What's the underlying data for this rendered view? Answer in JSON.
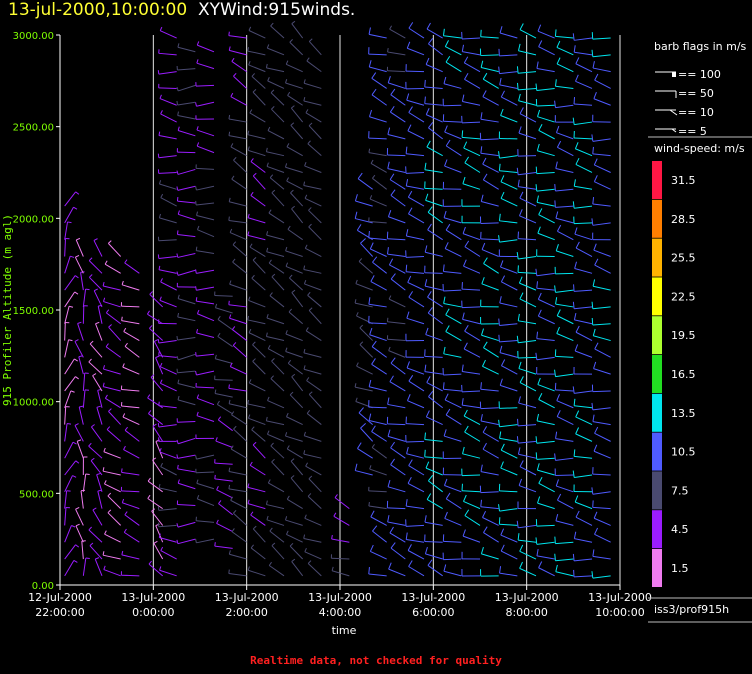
{
  "header": {
    "date_text": "13-jul-2000,10:00:00",
    "title_text": "XYWind:915winds."
  },
  "footer": {
    "note": "Realtime data, not checked for quality"
  },
  "legend": {
    "barb_title": "barb flags in m/s",
    "barbs": [
      {
        "label": "== 100",
        "kind": "flag"
      },
      {
        "label": "== 50",
        "kind": "full"
      },
      {
        "label": "== 10",
        "kind": "line"
      },
      {
        "label": "== 5",
        "kind": "half"
      }
    ],
    "speed_title": "wind-speed: m/s",
    "speed_colors": [
      {
        "label": "31.5",
        "color": "#ff1744"
      },
      {
        "label": "28.5",
        "color": "#ff7f00"
      },
      {
        "label": "25.5",
        "color": "#ffb300"
      },
      {
        "label": "22.5",
        "color": "#ffff00"
      },
      {
        "label": "19.5",
        "color": "#adff2f"
      },
      {
        "label": "16.5",
        "color": "#22dd22"
      },
      {
        "label": "13.5",
        "color": "#00e5ee"
      },
      {
        "label": "10.5",
        "color": "#4f5bff"
      },
      {
        "label": "7.5",
        "color": "#4a4a70"
      },
      {
        "label": "4.5",
        "color": "#9b1dff"
      },
      {
        "label": "1.5",
        "color": "#f07cf0"
      }
    ],
    "station": "iss3/prof915h"
  },
  "chart_data": {
    "type": "scatter",
    "xlabel": "time",
    "ylabel": "915 Profiler Altitude (m agl)",
    "ylim": [
      0,
      3000
    ],
    "yticks": [
      "0.00",
      "500.00",
      "1000.00",
      "1500.00",
      "2000.00",
      "2500.00",
      "3000.00"
    ],
    "xticks": [
      {
        "date": "12-Jul-2000",
        "time": "22:00:00"
      },
      {
        "date": "13-Jul-2000",
        "time": "0:00:00"
      },
      {
        "date": "13-Jul-2000",
        "time": "2:00:00"
      },
      {
        "date": "13-Jul-2000",
        "time": "4:00:00"
      },
      {
        "date": "13-Jul-2000",
        "time": "6:00:00"
      },
      {
        "date": "13-Jul-2000",
        "time": "8:00:00"
      },
      {
        "date": "13-Jul-2000",
        "time": "10:00:00"
      }
    ],
    "xlim_hours": [
      -2,
      10
    ],
    "grid": "vertical",
    "series": [
      {
        "hour": -1.9,
        "alt_from": 50,
        "alt_to": 2100,
        "speed": 3.0,
        "dir": 20
      },
      {
        "hour": -1.5,
        "alt_from": 50,
        "alt_to": 1800,
        "speed": 3.5,
        "dir": 350
      },
      {
        "hour": -1.1,
        "alt_from": 50,
        "alt_to": 1800,
        "speed": 4.0,
        "dir": 330
      },
      {
        "hour": -0.7,
        "alt_from": 50,
        "alt_to": 1800,
        "speed": 3.5,
        "dir": 300
      },
      {
        "hour": -0.3,
        "alt_from": 50,
        "alt_to": 1750,
        "speed": 3.0,
        "dir": 290
      },
      {
        "hour": 0.2,
        "alt_from": 50,
        "alt_to": 1600,
        "speed": 3.5,
        "dir": 320
      },
      {
        "hour": 0.5,
        "alt_from": 50,
        "alt_to": 3000,
        "speed": 5.0,
        "dir": 280
      },
      {
        "hour": 0.9,
        "alt_from": 250,
        "alt_to": 3000,
        "speed": 5.5,
        "dir": 270
      },
      {
        "hour": 1.3,
        "alt_from": 250,
        "alt_to": 3000,
        "speed": 5.5,
        "dir": 275
      },
      {
        "hour": 1.7,
        "alt_from": 200,
        "alt_to": 1600,
        "speed": 6.0,
        "dir": 290
      },
      {
        "hour": 2.0,
        "alt_from": 50,
        "alt_to": 3000,
        "speed": 6.5,
        "dir": 295
      },
      {
        "hour": 2.4,
        "alt_from": 50,
        "alt_to": 3000,
        "speed": 7.0,
        "dir": 300
      },
      {
        "hour": 2.8,
        "alt_from": 50,
        "alt_to": 3000,
        "speed": 7.5,
        "dir": 300
      },
      {
        "hour": 3.2,
        "alt_from": 50,
        "alt_to": 3000,
        "speed": 7.5,
        "dir": 305
      },
      {
        "hour": 3.6,
        "alt_from": 50,
        "alt_to": 2900,
        "speed": 7.5,
        "dir": 300
      },
      {
        "hour": 4.2,
        "alt_from": 50,
        "alt_to": 500,
        "speed": 6.0,
        "dir": 290
      },
      {
        "hour": 4.7,
        "alt_from": 600,
        "alt_to": 2200,
        "speed": 9.0,
        "dir": 300
      },
      {
        "hour": 5.0,
        "alt_from": 50,
        "alt_to": 3000,
        "speed": 10.0,
        "dir": 290
      },
      {
        "hour": 5.4,
        "alt_from": 50,
        "alt_to": 3000,
        "speed": 10.0,
        "dir": 290
      },
      {
        "hour": 5.8,
        "alt_from": 50,
        "alt_to": 3000,
        "speed": 10.5,
        "dir": 285
      },
      {
        "hour": 6.2,
        "alt_from": 50,
        "alt_to": 3000,
        "speed": 11.0,
        "dir": 290
      },
      {
        "hour": 6.6,
        "alt_from": 50,
        "alt_to": 3000,
        "speed": 11.0,
        "dir": 285
      },
      {
        "hour": 7.0,
        "alt_from": 50,
        "alt_to": 3000,
        "speed": 11.5,
        "dir": 285
      },
      {
        "hour": 7.4,
        "alt_from": 50,
        "alt_to": 3000,
        "speed": 11.5,
        "dir": 285
      },
      {
        "hour": 7.8,
        "alt_from": 50,
        "alt_to": 3000,
        "speed": 12.0,
        "dir": 280
      },
      {
        "hour": 8.2,
        "alt_from": 50,
        "alt_to": 3000,
        "speed": 12.0,
        "dir": 280
      },
      {
        "hour": 8.6,
        "alt_from": 50,
        "alt_to": 3000,
        "speed": 12.5,
        "dir": 280
      },
      {
        "hour": 9.0,
        "alt_from": 50,
        "alt_to": 3000,
        "speed": 12.0,
        "dir": 280
      },
      {
        "hour": 9.4,
        "alt_from": 50,
        "alt_to": 3000,
        "speed": 11.5,
        "dir": 280
      },
      {
        "hour": 9.8,
        "alt_from": 50,
        "alt_to": 3000,
        "speed": 11.0,
        "dir": 280
      }
    ]
  }
}
